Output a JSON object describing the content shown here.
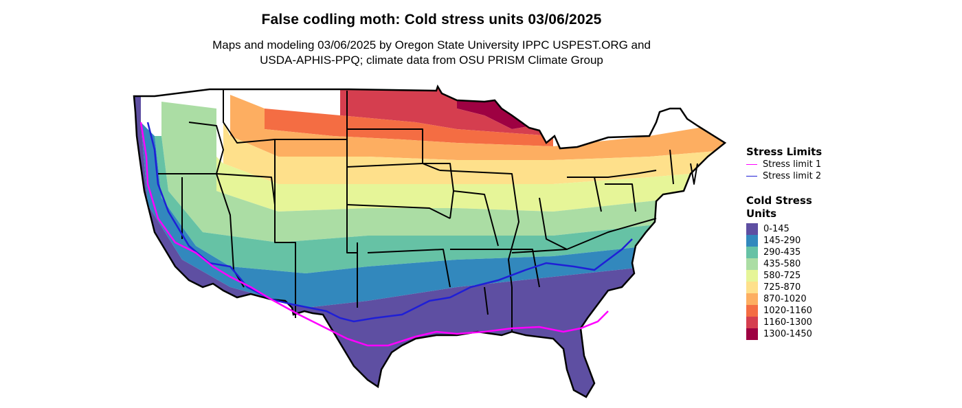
{
  "title": "False codling moth: Cold stress units 03/06/2025",
  "subtitle": {
    "line1": "Maps and modeling 03/06/2025 by Oregon State University IPPC USPEST.ORG and",
    "line2": "USDA-APHIS-PPQ; climate data from OSU PRISM Climate Group"
  },
  "legend_limits": {
    "title": "Stress Limits",
    "items": [
      {
        "label": "Stress limit 1",
        "color": "#ff00ff"
      },
      {
        "label": "Stress limit 2",
        "color": "#1f1fd6"
      }
    ]
  },
  "legend_units": {
    "title": "Cold Stress Units",
    "items": [
      {
        "label": "0-145",
        "color": "#5e4fa2"
      },
      {
        "label": "145-290",
        "color": "#3288bd"
      },
      {
        "label": "290-435",
        "color": "#66c2a5"
      },
      {
        "label": "435-580",
        "color": "#abdda4"
      },
      {
        "label": "580-725",
        "color": "#e6f598"
      },
      {
        "label": "725-870",
        "color": "#fee08b"
      },
      {
        "label": "870-1020",
        "color": "#fdae61"
      },
      {
        "label": "1020-1160",
        "color": "#f46d43"
      },
      {
        "label": "1160-1300",
        "color": "#d53e4f"
      },
      {
        "label": "1300-1450",
        "color": "#9e0142"
      }
    ]
  }
}
